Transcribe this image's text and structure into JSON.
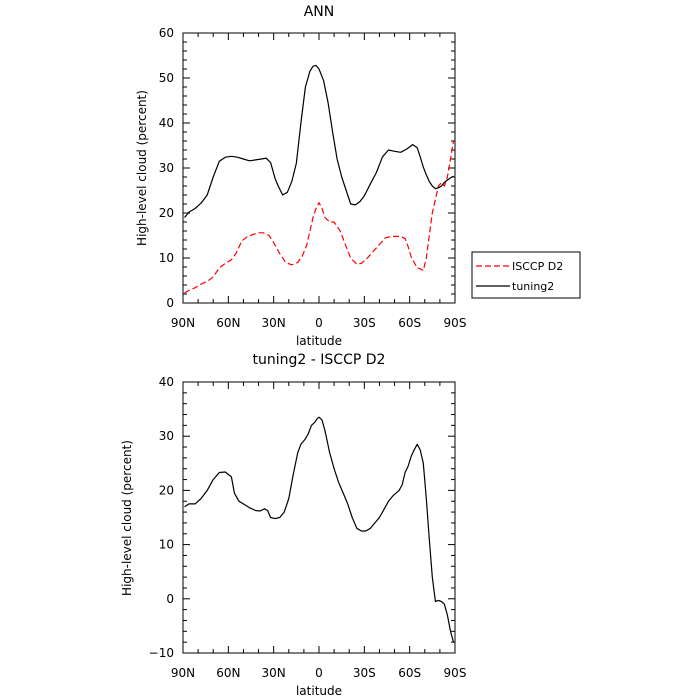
{
  "chart_data": [
    {
      "type": "line",
      "title": "ANN",
      "xlabel": "latitude",
      "ylabel": "High-level cloud (percent)",
      "xlim": [
        90,
        -90
      ],
      "ylim": [
        0,
        60
      ],
      "x_ticks": [
        90,
        60,
        30,
        0,
        -30,
        -60,
        -90
      ],
      "x_tick_labels": [
        "90N",
        "60N",
        "30N",
        "0",
        "30S",
        "60S",
        "90S"
      ],
      "y_ticks": [
        0,
        10,
        20,
        30,
        40,
        50,
        60
      ],
      "y_tick_labels": [
        "0",
        "10",
        "20",
        "30",
        "40",
        "50",
        "60"
      ],
      "legend": {
        "position": "right",
        "entries": [
          "ISCCP D2",
          "tuning2"
        ]
      },
      "series": [
        {
          "name": "ISCCP D2",
          "color": "#ff0000",
          "dash": "dashed",
          "x": [
            89,
            86,
            82,
            78,
            74,
            70,
            66,
            62,
            58,
            55,
            51,
            48,
            44,
            40,
            37,
            33,
            30,
            26,
            22,
            18,
            14,
            11,
            8,
            6,
            4,
            2,
            0,
            -2,
            -4,
            -7,
            -10,
            -14,
            -18,
            -21,
            -25,
            -28,
            -32,
            -36,
            -40,
            -44,
            -48,
            -51,
            -54,
            -57,
            -59,
            -61,
            -63,
            -65,
            -67,
            -69,
            -71,
            -73,
            -75,
            -77,
            -79,
            -81,
            -83,
            -85,
            -87,
            -89
          ],
          "y": [
            2.2,
            2.8,
            3.4,
            4.2,
            4.8,
            5.8,
            7.8,
            8.8,
            9.6,
            11.0,
            13.8,
            14.6,
            15.2,
            15.6,
            15.6,
            15.0,
            13.4,
            11.0,
            9.0,
            8.5,
            9.0,
            10.5,
            13.0,
            16.0,
            19.0,
            21.0,
            22.3,
            21.0,
            19.0,
            18.0,
            18.0,
            16.0,
            12.5,
            10.0,
            8.6,
            8.8,
            10.0,
            11.5,
            13.0,
            14.5,
            14.8,
            14.8,
            14.8,
            14.3,
            12.5,
            10.2,
            9.0,
            7.8,
            7.6,
            7.2,
            10.0,
            15.0,
            20.0,
            23.0,
            26.0,
            26.7,
            26.0,
            28.0,
            32.0,
            36.0
          ]
        },
        {
          "name": "tuning2",
          "color": "#000000",
          "dash": "solid",
          "x": [
            89,
            86,
            82,
            78,
            74,
            70,
            66,
            62,
            58,
            54,
            50,
            46,
            42,
            38,
            35,
            32,
            29,
            27,
            24,
            21,
            18,
            15,
            12,
            9,
            6,
            4,
            2,
            0,
            -3,
            -6,
            -9,
            -12,
            -15,
            -18,
            -21,
            -24,
            -27,
            -30,
            -34,
            -38,
            -42,
            -46,
            -50,
            -54,
            -58,
            -62,
            -65,
            -67,
            -69,
            -71,
            -73,
            -75,
            -77,
            -79,
            -81,
            -83,
            -85,
            -87,
            -89
          ],
          "y": [
            19.0,
            20.2,
            21.0,
            22.2,
            24.0,
            28.0,
            31.5,
            32.4,
            32.6,
            32.4,
            32.0,
            31.6,
            31.8,
            32.0,
            32.2,
            31.2,
            27.6,
            26.0,
            24.0,
            24.6,
            27.0,
            31.0,
            40.0,
            48.0,
            51.5,
            52.6,
            52.8,
            52.0,
            49.5,
            44.5,
            38.0,
            32.0,
            28.0,
            25.0,
            22.0,
            21.8,
            22.5,
            23.8,
            26.5,
            29.0,
            32.5,
            34.0,
            33.7,
            33.5,
            34.2,
            35.2,
            34.5,
            32.5,
            30.2,
            28.5,
            27.0,
            26.0,
            25.4,
            25.6,
            26.0,
            26.8,
            27.3,
            27.8,
            28.2
          ]
        }
      ]
    },
    {
      "type": "line",
      "title": "tuning2 - ISCCP D2",
      "xlabel": "latitude",
      "ylabel": "High-level cloud (percent)",
      "xlim": [
        90,
        -90
      ],
      "ylim": [
        -10,
        40
      ],
      "x_ticks": [
        90,
        60,
        30,
        0,
        -30,
        -60,
        -90
      ],
      "x_tick_labels": [
        "90N",
        "60N",
        "30N",
        "0",
        "30S",
        "60S",
        "90S"
      ],
      "y_ticks": [
        -10,
        0,
        10,
        20,
        30,
        40
      ],
      "y_tick_labels": [
        "−10",
        "0",
        "10",
        "20",
        "30",
        "40"
      ],
      "series": [
        {
          "color": "#000000",
          "dash": "solid",
          "x": [
            89,
            86,
            82,
            78,
            74,
            70,
            66,
            62,
            58,
            56,
            53,
            50,
            46,
            42,
            39,
            36,
            34,
            32,
            29,
            26,
            23,
            20,
            17,
            14,
            12,
            9,
            7,
            5,
            3,
            1,
            0,
            -2,
            -4,
            -7,
            -10,
            -13,
            -16,
            -19,
            -22,
            -25,
            -28,
            -31,
            -34,
            -37,
            -40,
            -43,
            -46,
            -49,
            -51,
            -53,
            -55,
            -57,
            -59,
            -61,
            -63,
            -65,
            -67,
            -69,
            -71,
            -73,
            -75,
            -77,
            -79,
            -81,
            -83,
            -85,
            -87,
            -89
          ],
          "y": [
            17.0,
            17.5,
            17.5,
            18.5,
            20.0,
            22.0,
            23.3,
            23.4,
            22.5,
            19.5,
            18.0,
            17.5,
            16.8,
            16.3,
            16.2,
            16.6,
            16.3,
            15.0,
            14.8,
            15.0,
            16.0,
            18.5,
            23.0,
            27.0,
            28.5,
            29.5,
            30.5,
            32.0,
            32.5,
            33.3,
            33.5,
            33.0,
            31.0,
            27.0,
            24.0,
            21.5,
            19.5,
            17.5,
            15.0,
            13.0,
            12.5,
            12.5,
            13.0,
            14.0,
            15.0,
            16.5,
            18.0,
            19.0,
            19.5,
            20.0,
            21.0,
            23.3,
            24.5,
            26.3,
            27.5,
            28.5,
            27.5,
            25.0,
            18.5,
            11.0,
            4.0,
            -0.5,
            -0.3,
            -0.5,
            -1.0,
            -3.0,
            -6.0,
            -8.0
          ]
        }
      ]
    }
  ]
}
